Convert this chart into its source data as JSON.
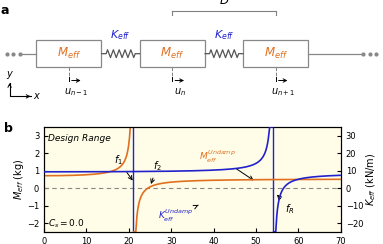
{
  "panel_b": {
    "xlim": [
      0,
      70
    ],
    "ylim_left": [
      -2.5,
      3.5
    ],
    "ylim_right": [
      -25,
      35
    ],
    "xticks": [
      0,
      10,
      20,
      30,
      40,
      50,
      60,
      70
    ],
    "yticks_left": [
      -2,
      -1,
      0,
      1,
      2,
      3
    ],
    "yticks_right": [
      -20,
      -10,
      0,
      10,
      20,
      30
    ],
    "ylabel_left": "$M_{eff}$ (kg)",
    "ylabel_right": "$K_{eff}$ (kN/m)",
    "f1": 21.0,
    "f2": 24.5,
    "fR": 54.0,
    "bg_color": "#fffde8",
    "line_orange": "#E07020",
    "line_blue": "#2222cc",
    "design_range_label": "Design Range",
    "cs_label": "$C_s = 0.0$",
    "M_label": "$M_{eff}^{Undamp}$",
    "K_label": "$K_{eff}^{Undamp}$",
    "f1_label": "$f_1$",
    "f2_label": "$f_2$",
    "fR_label": "$f_R$",
    "A_M": 0.52,
    "f2_zero": 24.5,
    "C_K": 8.5,
    "fKa": 56.5
  },
  "panel_a": {
    "box_color_edge": "#888888",
    "box_color_face": "white",
    "text_orange": "#E07020",
    "text_blue": "#2222cc",
    "spring_color": "#555555",
    "dots_color": "#888888"
  }
}
